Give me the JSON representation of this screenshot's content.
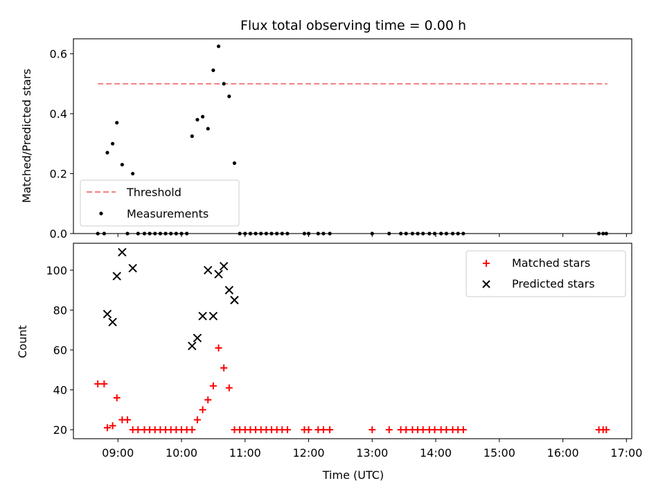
{
  "chart_data": [
    {
      "type": "scatter",
      "title": "Flux total observing time = 0.00 h",
      "ylabel": "Matched/Predicted stars",
      "xlabel": "",
      "xlim": [
        "08:18",
        "17:05"
      ],
      "ylim": [
        0,
        0.65
      ],
      "yticks": [
        "0.0",
        "0.2",
        "0.4",
        "0.6"
      ],
      "grid": false,
      "legend_position": "lower-left",
      "series": [
        {
          "name": "Threshold",
          "style": "dashed-line",
          "color": "#f08080",
          "points": [
            [
              "08:41",
              0.5
            ],
            [
              "16:42",
              0.5
            ]
          ]
        },
        {
          "name": "Measurements",
          "style": "dot",
          "color": "#000000",
          "points": [
            [
              "08:41",
              0.0
            ],
            [
              "08:47",
              0.0
            ],
            [
              "08:50",
              0.27
            ],
            [
              "08:55",
              0.3
            ],
            [
              "08:59",
              0.37
            ],
            [
              "09:04",
              0.23
            ],
            [
              "09:09",
              0.0
            ],
            [
              "09:14",
              0.2
            ],
            [
              "09:19",
              0.0
            ],
            [
              "09:25",
              0.0
            ],
            [
              "09:30",
              0.0
            ],
            [
              "09:35",
              0.0
            ],
            [
              "09:40",
              0.0
            ],
            [
              "09:45",
              0.0
            ],
            [
              "09:50",
              0.0
            ],
            [
              "09:55",
              0.0
            ],
            [
              "10:00",
              0.0
            ],
            [
              "10:05",
              0.0
            ],
            [
              "10:10",
              0.325
            ],
            [
              "10:15",
              0.38
            ],
            [
              "10:20",
              0.39
            ],
            [
              "10:25",
              0.35
            ],
            [
              "10:30",
              0.545
            ],
            [
              "10:35",
              0.625
            ],
            [
              "10:40",
              0.5
            ],
            [
              "10:45",
              0.458
            ],
            [
              "10:50",
              0.235
            ],
            [
              "10:55",
              0.0
            ],
            [
              "11:00",
              0.0
            ],
            [
              "11:05",
              0.0
            ],
            [
              "11:10",
              0.0
            ],
            [
              "11:15",
              0.0
            ],
            [
              "11:20",
              0.0
            ],
            [
              "11:25",
              0.0
            ],
            [
              "11:30",
              0.0
            ],
            [
              "11:35",
              0.0
            ],
            [
              "11:40",
              0.0
            ],
            [
              "11:56",
              0.0
            ],
            [
              "12:00",
              0.0
            ],
            [
              "12:09",
              0.0
            ],
            [
              "12:14",
              0.0
            ],
            [
              "12:20",
              0.0
            ],
            [
              "13:00",
              0.0
            ],
            [
              "13:16",
              0.0
            ],
            [
              "13:27",
              0.0
            ],
            [
              "13:32",
              0.0
            ],
            [
              "13:38",
              0.0
            ],
            [
              "13:43",
              0.0
            ],
            [
              "13:48",
              0.0
            ],
            [
              "13:54",
              0.0
            ],
            [
              "13:59",
              0.0
            ],
            [
              "14:05",
              0.0
            ],
            [
              "14:10",
              0.0
            ],
            [
              "14:16",
              0.0
            ],
            [
              "14:21",
              0.0
            ],
            [
              "14:26",
              0.0
            ],
            [
              "16:34",
              0.0
            ],
            [
              "16:38",
              0.0
            ],
            [
              "16:41",
              0.0
            ]
          ]
        }
      ],
      "legend": [
        "Threshold",
        "Measurements"
      ]
    },
    {
      "type": "scatter",
      "title": "",
      "xlabel": "Time (UTC)",
      "ylabel": "Count",
      "xlim": [
        "08:18",
        "17:05"
      ],
      "ylim": [
        15.5,
        113.5
      ],
      "xticks": [
        "09:00",
        "10:00",
        "11:00",
        "12:00",
        "13:00",
        "14:00",
        "15:00",
        "16:00",
        "17:00"
      ],
      "yticks": [
        "20",
        "40",
        "60",
        "80",
        "100"
      ],
      "grid": false,
      "legend_position": "upper-right",
      "series": [
        {
          "name": "Matched stars",
          "style": "plus",
          "color": "#ff0000",
          "points": [
            [
              "08:41",
              43
            ],
            [
              "08:47",
              43
            ],
            [
              "08:50",
              21
            ],
            [
              "08:55",
              22
            ],
            [
              "08:59",
              36
            ],
            [
              "09:04",
              25
            ],
            [
              "09:09",
              25
            ],
            [
              "09:14",
              20
            ],
            [
              "09:19",
              20
            ],
            [
              "09:25",
              20
            ],
            [
              "09:30",
              20
            ],
            [
              "09:35",
              20
            ],
            [
              "09:40",
              20
            ],
            [
              "09:45",
              20
            ],
            [
              "09:50",
              20
            ],
            [
              "09:55",
              20
            ],
            [
              "10:00",
              20
            ],
            [
              "10:05",
              20
            ],
            [
              "10:10",
              20
            ],
            [
              "10:15",
              25
            ],
            [
              "10:20",
              30
            ],
            [
              "10:25",
              35
            ],
            [
              "10:30",
              42
            ],
            [
              "10:35",
              61
            ],
            [
              "10:40",
              51
            ],
            [
              "10:45",
              41
            ],
            [
              "10:50",
              20
            ],
            [
              "10:55",
              20
            ],
            [
              "11:00",
              20
            ],
            [
              "11:05",
              20
            ],
            [
              "11:10",
              20
            ],
            [
              "11:15",
              20
            ],
            [
              "11:20",
              20
            ],
            [
              "11:25",
              20
            ],
            [
              "11:30",
              20
            ],
            [
              "11:35",
              20
            ],
            [
              "11:40",
              20
            ],
            [
              "11:56",
              20
            ],
            [
              "12:00",
              20
            ],
            [
              "12:09",
              20
            ],
            [
              "12:14",
              20
            ],
            [
              "12:20",
              20
            ],
            [
              "13:00",
              20
            ],
            [
              "13:16",
              20
            ],
            [
              "13:27",
              20
            ],
            [
              "13:32",
              20
            ],
            [
              "13:38",
              20
            ],
            [
              "13:43",
              20
            ],
            [
              "13:48",
              20
            ],
            [
              "13:54",
              20
            ],
            [
              "13:59",
              20
            ],
            [
              "14:05",
              20
            ],
            [
              "14:10",
              20
            ],
            [
              "14:16",
              20
            ],
            [
              "14:21",
              20
            ],
            [
              "14:26",
              20
            ],
            [
              "16:34",
              20
            ],
            [
              "16:38",
              20
            ],
            [
              "16:41",
              20
            ]
          ]
        },
        {
          "name": "Predicted stars",
          "style": "x",
          "color": "#000000",
          "points": [
            [
              "08:50",
              78
            ],
            [
              "08:55",
              74
            ],
            [
              "08:59",
              97
            ],
            [
              "09:04",
              109
            ],
            [
              "09:14",
              101
            ],
            [
              "10:10",
              62
            ],
            [
              "10:15",
              66
            ],
            [
              "10:20",
              77
            ],
            [
              "10:25",
              100
            ],
            [
              "10:30",
              77
            ],
            [
              "10:35",
              98
            ],
            [
              "10:40",
              102
            ],
            [
              "10:45",
              90
            ],
            [
              "10:50",
              85
            ]
          ]
        }
      ],
      "legend": [
        "Matched stars",
        "Predicted stars"
      ]
    }
  ]
}
